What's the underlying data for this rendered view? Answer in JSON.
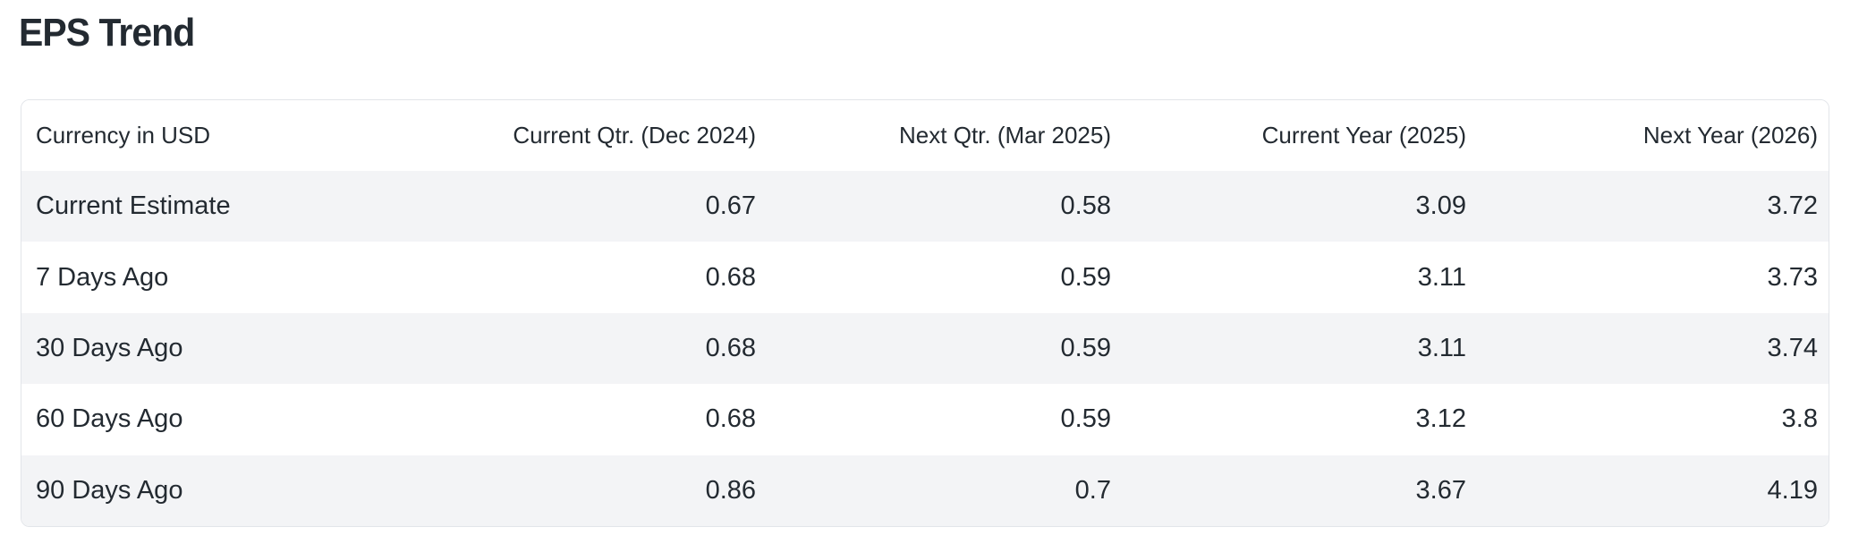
{
  "page": {
    "title": "EPS Trend"
  },
  "table": {
    "columns": [
      "Currency in USD",
      "Current Qtr. (Dec 2024)",
      "Next Qtr. (Mar 2025)",
      "Current Year (2025)",
      "Next Year (2026)"
    ],
    "rows": [
      {
        "cells": [
          "Current Estimate",
          "0.67",
          "0.58",
          "3.09",
          "3.72"
        ]
      },
      {
        "cells": [
          "7 Days Ago",
          "0.68",
          "0.59",
          "3.11",
          "3.73"
        ]
      },
      {
        "cells": [
          "30 Days Ago",
          "0.68",
          "0.59",
          "3.11",
          "3.74"
        ]
      },
      {
        "cells": [
          "60 Days Ago",
          "0.68",
          "0.59",
          "3.12",
          "3.8"
        ]
      },
      {
        "cells": [
          "90 Days Ago",
          "0.86",
          "0.7",
          "3.67",
          "4.19"
        ]
      }
    ]
  },
  "colors": {
    "text": "#232a31",
    "row_stripe": "#f3f4f6",
    "card_border": "#e2e5e9",
    "background": "#ffffff"
  }
}
